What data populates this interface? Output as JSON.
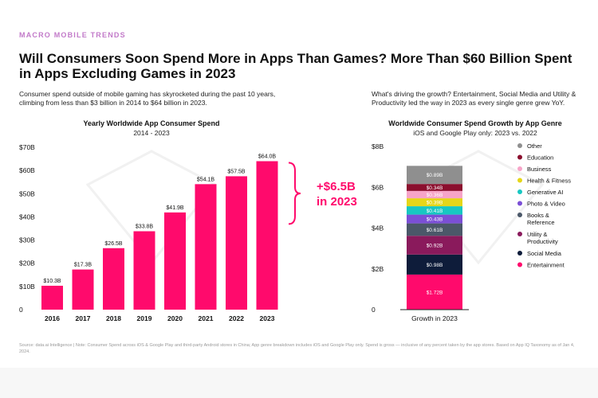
{
  "header": {
    "eyebrow": "MACRO MOBILE TRENDS",
    "title": "Will Consumers Soon Spend More in Apps Than Games? More Than $60 Billion Spent in Apps Excluding Games in 2023",
    "left_text": "Consumer spend outside of mobile gaming has skyrocketed during the past 10 years, climbing from less than $3 billion in 2014 to $64 billion in 2023.",
    "right_text": "What's driving the growth? Entertainment, Social Media and Utility & Productivity led the way in 2023 as every single genre grew YoY."
  },
  "source": "Source: data.ai Intelligence | Note: Consumer Spend across iOS & Google Play and third-party Android stores in China; App genre breakdown includes iOS and Google Play only. Spend is gross — inclusive of any percent taken by the app stores. Based on App IQ Taxonomy as of Jan 4, 2024.",
  "chart_data": [
    {
      "type": "bar",
      "title": "Yearly Worldwide App Consumer Spend",
      "subtitle": "2014 - 2023",
      "categories": [
        "2016",
        "2017",
        "2018",
        "2019",
        "2020",
        "2021",
        "2022",
        "2023"
      ],
      "values": [
        10.3,
        17.3,
        26.5,
        33.8,
        41.9,
        54.1,
        57.5,
        64.0
      ],
      "data_labels": [
        "$10.3B",
        "$17.3B",
        "$26.5B",
        "$33.8B",
        "$41.9B",
        "$54.1B",
        "$57.5B",
        "$64.0B"
      ],
      "yticks": [
        "0",
        "$10B",
        "$20B",
        "$30B",
        "$40B",
        "$50B",
        "$60B",
        "$70B"
      ],
      "ylim": [
        0,
        70
      ],
      "annotation": [
        "+$6.5B",
        "in 2023"
      ],
      "bar_color": "#ff0a6c",
      "annotation_color": "#ff0a6c"
    },
    {
      "type": "bar",
      "stacked": true,
      "title": "Worldwide Consumer Spend Growth by App Genre",
      "subtitle": "iOS and Google Play only: 2023 vs. 2022",
      "categories": [
        "Growth in 2023"
      ],
      "yticks": [
        "0",
        "$2B",
        "$4B",
        "$6B",
        "$8B"
      ],
      "ylim": [
        0,
        8
      ],
      "series": [
        {
          "name": "Entertainment",
          "value": 1.72,
          "label": "$1.72B",
          "color": "#ff0a6c"
        },
        {
          "name": "Social Media",
          "value": 0.98,
          "label": "$0.98B",
          "color": "#0e1c3a"
        },
        {
          "name": "Utility & Productivity",
          "value": 0.92,
          "label": "$0.92B",
          "color": "#8a1a5c"
        },
        {
          "name": "Books & Reference",
          "value": 0.61,
          "label": "$0.61B",
          "color": "#4b5869"
        },
        {
          "name": "Photo & Video",
          "value": 0.43,
          "label": "$0.43B",
          "color": "#7b4fd6"
        },
        {
          "name": "Generative AI",
          "value": 0.41,
          "label": "$0.41B",
          "color": "#17c7c2"
        },
        {
          "name": "Health & Fitness",
          "value": 0.39,
          "label": "$0.39B",
          "color": "#e5d619"
        },
        {
          "name": "Business",
          "value": 0.36,
          "label": "$0.36B",
          "color": "#f7a4c8"
        },
        {
          "name": "Education",
          "value": 0.34,
          "label": "$0.34B",
          "color": "#8b0f2e"
        },
        {
          "name": "Other",
          "value": 0.89,
          "label": "$0.89B",
          "color": "#8f8f8f"
        }
      ],
      "legend_order": [
        "Other",
        "Education",
        "Business",
        "Health & Fitness",
        "Generative AI",
        "Photo & Video",
        "Books & Reference",
        "Utility & Productivity",
        "Social Media",
        "Entertainment"
      ],
      "legend_placement": "right"
    }
  ]
}
